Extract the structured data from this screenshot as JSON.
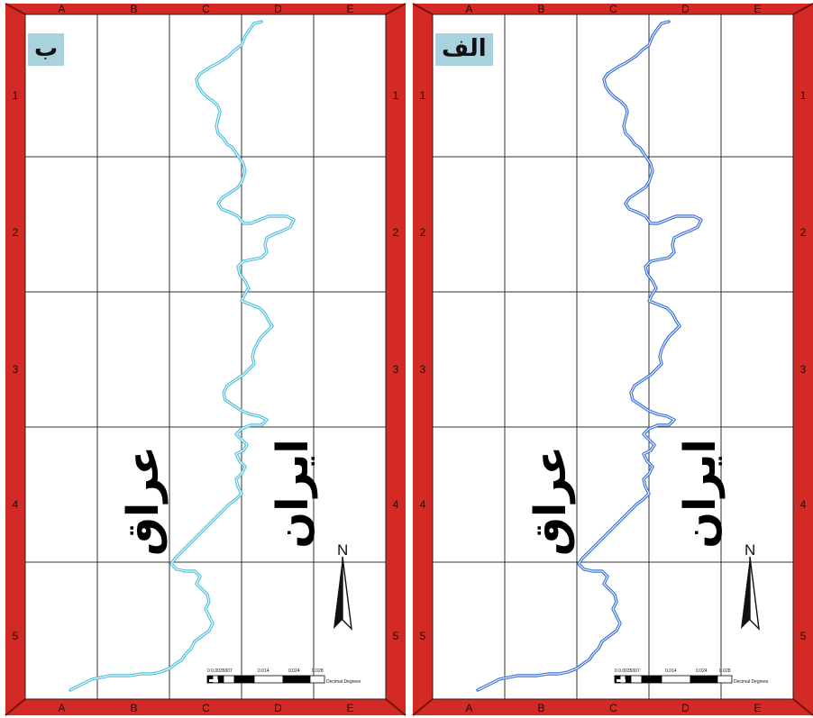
{
  "panels": [
    {
      "label": "ب",
      "river_color": "#53bfe0",
      "country_west": "عراق",
      "country_east": "ایران",
      "north": "N",
      "scale_ticks": [
        "0 0.0035007",
        "0.014",
        "0.024",
        "0.028"
      ],
      "scale_unit": "Decimal Degrees"
    },
    {
      "label": "الف",
      "river_color": "#3a73de",
      "country_west": "عراق",
      "country_east": "ایران",
      "north": "N",
      "scale_ticks": [
        "0 0.0035007",
        "0.014",
        "0.024",
        "0.028"
      ],
      "scale_unit": "Decimal Degrees"
    }
  ],
  "grid": {
    "columns": [
      "A",
      "B",
      "C",
      "D",
      "E"
    ],
    "rows": [
      "1",
      "2",
      "3",
      "4",
      "5"
    ]
  },
  "colors": {
    "frame": "#d42a26",
    "frame_dark": "#7a1010",
    "badge_bg": "#a9d2de",
    "grid_line": "#333333"
  }
}
